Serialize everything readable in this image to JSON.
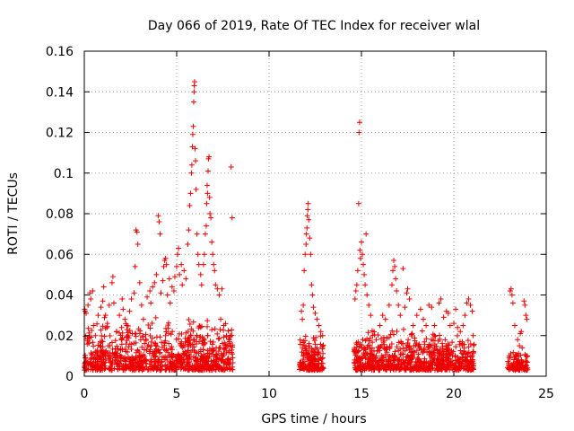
{
  "chart_data": {
    "type": "scatter",
    "title": "Day 066 of 2019, Rate Of TEC Index for receiver wlal",
    "xlabel": "GPS time / hours",
    "ylabel": "ROTI / TECUs",
    "xlim": [
      0,
      25
    ],
    "ylim": [
      0,
      0.16
    ],
    "xticks": [
      0,
      5,
      10,
      15,
      20,
      25
    ],
    "xtick_labels": [
      "0",
      "5",
      "10",
      "15",
      "20",
      "25"
    ],
    "yticks": [
      0,
      0.02,
      0.04,
      0.06,
      0.08,
      0.1,
      0.12,
      0.14,
      0.16
    ],
    "ytick_labels": [
      "0",
      "0.02",
      "0.04",
      "0.06",
      "0.08",
      "0.1",
      "0.12",
      "0.14",
      "0.16"
    ],
    "grid": true,
    "marker": "plus",
    "color": "#ee0000",
    "series": [
      {
        "name": "ROTI",
        "points": [
          [
            0.02,
            0.033
          ],
          [
            0.05,
            0.032
          ],
          [
            0.1,
            0.031
          ],
          [
            0.2,
            0.035
          ],
          [
            0.3,
            0.041
          ],
          [
            0.35,
            0.038
          ],
          [
            0.45,
            0.042
          ],
          [
            0.5,
            0.025
          ],
          [
            0.6,
            0.02
          ],
          [
            0.75,
            0.03
          ],
          [
            0.9,
            0.034
          ],
          [
            1.0,
            0.037
          ],
          [
            1.05,
            0.044
          ],
          [
            1.15,
            0.03
          ],
          [
            1.25,
            0.026
          ],
          [
            1.35,
            0.035
          ],
          [
            1.5,
            0.046
          ],
          [
            1.55,
            0.049
          ],
          [
            1.6,
            0.036
          ],
          [
            1.75,
            0.022
          ],
          [
            1.9,
            0.03
          ],
          [
            2.05,
            0.038
          ],
          [
            2.1,
            0.033
          ],
          [
            2.2,
            0.028
          ],
          [
            2.3,
            0.025
          ],
          [
            2.45,
            0.032
          ],
          [
            2.55,
            0.038
          ],
          [
            2.7,
            0.041
          ],
          [
            2.75,
            0.054
          ],
          [
            2.8,
            0.072
          ],
          [
            2.85,
            0.071
          ],
          [
            2.9,
            0.065
          ],
          [
            3.0,
            0.046
          ],
          [
            3.1,
            0.035
          ],
          [
            3.2,
            0.028
          ],
          [
            3.4,
            0.039
          ],
          [
            3.55,
            0.042
          ],
          [
            3.6,
            0.036
          ],
          [
            3.7,
            0.044
          ],
          [
            3.8,
            0.046
          ],
          [
            3.9,
            0.05
          ],
          [
            4.0,
            0.079
          ],
          [
            4.05,
            0.076
          ],
          [
            4.1,
            0.07
          ],
          [
            4.15,
            0.041
          ],
          [
            4.25,
            0.047
          ],
          [
            4.3,
            0.054
          ],
          [
            4.35,
            0.057
          ],
          [
            4.4,
            0.058
          ],
          [
            4.45,
            0.055
          ],
          [
            4.5,
            0.04
          ],
          [
            4.6,
            0.048
          ],
          [
            4.65,
            0.036
          ],
          [
            4.75,
            0.044
          ],
          [
            4.85,
            0.042
          ],
          [
            4.9,
            0.049
          ],
          [
            5.0,
            0.054
          ],
          [
            5.05,
            0.06
          ],
          [
            5.1,
            0.063
          ],
          [
            5.15,
            0.05
          ],
          [
            5.25,
            0.055
          ],
          [
            5.3,
            0.045
          ],
          [
            5.4,
            0.052
          ],
          [
            5.5,
            0.048
          ],
          [
            5.6,
            0.065
          ],
          [
            5.65,
            0.072
          ],
          [
            5.7,
            0.084
          ],
          [
            5.75,
            0.09
          ],
          [
            5.8,
            0.1
          ],
          [
            5.82,
            0.104
          ],
          [
            5.85,
            0.113
          ],
          [
            5.87,
            0.119
          ],
          [
            5.9,
            0.123
          ],
          [
            5.92,
            0.135
          ],
          [
            5.94,
            0.14
          ],
          [
            5.95,
            0.143
          ],
          [
            5.97,
            0.145
          ],
          [
            6.0,
            0.112
          ],
          [
            6.02,
            0.106
          ],
          [
            6.05,
            0.092
          ],
          [
            6.1,
            0.07
          ],
          [
            6.15,
            0.06
          ],
          [
            6.2,
            0.055
          ],
          [
            6.3,
            0.05
          ],
          [
            6.35,
            0.045
          ],
          [
            6.45,
            0.055
          ],
          [
            6.5,
            0.06
          ],
          [
            6.55,
            0.07
          ],
          [
            6.6,
            0.074
          ],
          [
            6.62,
            0.085
          ],
          [
            6.65,
            0.094
          ],
          [
            6.67,
            0.09
          ],
          [
            6.7,
            0.101
          ],
          [
            6.72,
            0.107
          ],
          [
            6.75,
            0.108
          ],
          [
            6.78,
            0.088
          ],
          [
            6.8,
            0.08
          ],
          [
            6.85,
            0.078
          ],
          [
            6.9,
            0.066
          ],
          [
            6.95,
            0.06
          ],
          [
            7.0,
            0.055
          ],
          [
            7.05,
            0.052
          ],
          [
            7.1,
            0.045
          ],
          [
            7.2,
            0.043
          ],
          [
            7.3,
            0.04
          ],
          [
            7.45,
            0.043
          ],
          [
            7.55,
            0.025
          ],
          [
            7.7,
            0.02
          ],
          [
            7.85,
            0.018
          ],
          [
            7.95,
            0.103
          ],
          [
            8.0,
            0.078
          ],
          [
            7.9,
            0.02
          ],
          [
            11.75,
            0.032
          ],
          [
            11.8,
            0.028
          ],
          [
            11.85,
            0.035
          ],
          [
            11.9,
            0.052
          ],
          [
            11.95,
            0.06
          ],
          [
            12.0,
            0.065
          ],
          [
            12.02,
            0.07
          ],
          [
            12.05,
            0.073
          ],
          [
            12.07,
            0.079
          ],
          [
            12.1,
            0.082
          ],
          [
            12.12,
            0.085
          ],
          [
            12.15,
            0.077
          ],
          [
            12.2,
            0.068
          ],
          [
            12.25,
            0.06
          ],
          [
            12.3,
            0.045
          ],
          [
            12.35,
            0.04
          ],
          [
            12.4,
            0.034
          ],
          [
            12.5,
            0.031
          ],
          [
            12.6,
            0.028
          ],
          [
            12.7,
            0.025
          ],
          [
            12.8,
            0.022
          ],
          [
            12.9,
            0.02
          ],
          [
            14.65,
            0.038
          ],
          [
            14.7,
            0.042
          ],
          [
            14.75,
            0.045
          ],
          [
            14.8,
            0.052
          ],
          [
            14.85,
            0.085
          ],
          [
            14.87,
            0.12
          ],
          [
            14.9,
            0.125
          ],
          [
            14.92,
            0.062
          ],
          [
            14.95,
            0.058
          ],
          [
            15.0,
            0.066
          ],
          [
            15.05,
            0.06
          ],
          [
            15.1,
            0.055
          ],
          [
            15.15,
            0.05
          ],
          [
            15.2,
            0.045
          ],
          [
            15.25,
            0.07
          ],
          [
            15.3,
            0.04
          ],
          [
            15.4,
            0.035
          ],
          [
            15.5,
            0.03
          ],
          [
            15.6,
            0.02
          ],
          [
            15.8,
            0.018
          ],
          [
            16.0,
            0.025
          ],
          [
            16.15,
            0.03
          ],
          [
            16.3,
            0.028
          ],
          [
            16.5,
            0.035
          ],
          [
            16.65,
            0.045
          ],
          [
            16.7,
            0.052
          ],
          [
            16.75,
            0.057
          ],
          [
            16.8,
            0.054
          ],
          [
            16.85,
            0.048
          ],
          [
            16.9,
            0.042
          ],
          [
            17.0,
            0.035
          ],
          [
            17.1,
            0.03
          ],
          [
            17.25,
            0.053
          ],
          [
            17.35,
            0.034
          ],
          [
            17.45,
            0.041
          ],
          [
            17.5,
            0.043
          ],
          [
            17.6,
            0.038
          ],
          [
            17.8,
            0.025
          ],
          [
            18.0,
            0.03
          ],
          [
            18.2,
            0.033
          ],
          [
            18.35,
            0.028
          ],
          [
            18.5,
            0.025
          ],
          [
            18.65,
            0.035
          ],
          [
            18.8,
            0.034
          ],
          [
            18.95,
            0.025
          ],
          [
            19.2,
            0.036
          ],
          [
            19.3,
            0.038
          ],
          [
            19.45,
            0.029
          ],
          [
            19.6,
            0.032
          ],
          [
            19.7,
            0.031
          ],
          [
            19.8,
            0.025
          ],
          [
            20.0,
            0.026
          ],
          [
            20.1,
            0.033
          ],
          [
            20.2,
            0.024
          ],
          [
            20.35,
            0.022
          ],
          [
            20.5,
            0.025
          ],
          [
            20.6,
            0.03
          ],
          [
            20.7,
            0.036
          ],
          [
            20.8,
            0.038
          ],
          [
            20.9,
            0.035
          ],
          [
            21.0,
            0.032
          ],
          [
            21.05,
            0.02
          ],
          [
            23.0,
            0.01
          ],
          [
            23.05,
            0.042
          ],
          [
            23.1,
            0.043
          ],
          [
            23.15,
            0.04
          ],
          [
            23.2,
            0.036
          ],
          [
            23.3,
            0.025
          ],
          [
            23.45,
            0.018
          ],
          [
            23.55,
            0.015
          ],
          [
            23.6,
            0.021
          ],
          [
            23.65,
            0.022
          ],
          [
            23.7,
            0.014
          ],
          [
            23.8,
            0.037
          ],
          [
            23.85,
            0.035
          ],
          [
            23.9,
            0.03
          ],
          [
            23.95,
            0.028
          ],
          [
            23.98,
            0.01
          ]
        ],
        "dense_bands": [
          {
            "x_range": [
              0.0,
              8.05
            ],
            "y_range": [
              0.003,
              0.03
            ],
            "count": 900
          },
          {
            "x_range": [
              11.65,
              12.95
            ],
            "y_range": [
              0.003,
              0.022
            ],
            "count": 180
          },
          {
            "x_range": [
              14.6,
              19.0
            ],
            "y_range": [
              0.003,
              0.025
            ],
            "count": 520
          },
          {
            "x_range": [
              19.05,
              21.1
            ],
            "y_range": [
              0.003,
              0.022
            ],
            "count": 260
          },
          {
            "x_range": [
              22.9,
              24.0
            ],
            "y_range": [
              0.003,
              0.012
            ],
            "count": 110
          }
        ]
      }
    ]
  }
}
